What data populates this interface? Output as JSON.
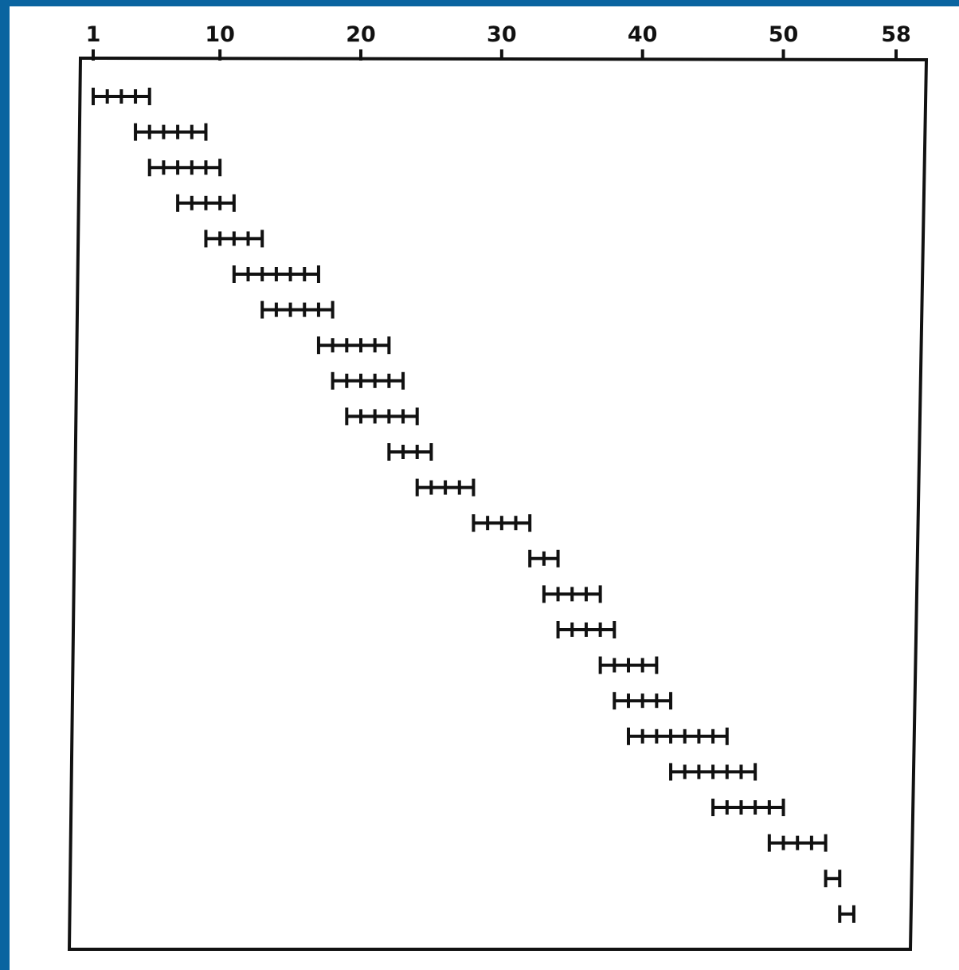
{
  "colors": {
    "page_border": "#0a64a0",
    "ink": "#111111",
    "background": "#ffffff"
  },
  "chart_data": {
    "type": "range",
    "title": "",
    "xlabel": "",
    "ylabel": "",
    "xlim": [
      1,
      58
    ],
    "grid": false,
    "x_tick_labels": [
      "1",
      "10",
      "20",
      "30",
      "40",
      "50",
      "58"
    ],
    "x_ticks": [
      1,
      10,
      20,
      30,
      40,
      50,
      58
    ],
    "ranges": [
      {
        "start": 1,
        "end": 5
      },
      {
        "start": 4,
        "end": 9
      },
      {
        "start": 5,
        "end": 10
      },
      {
        "start": 7,
        "end": 11
      },
      {
        "start": 9,
        "end": 13
      },
      {
        "start": 11,
        "end": 17
      },
      {
        "start": 13,
        "end": 18
      },
      {
        "start": 17,
        "end": 22
      },
      {
        "start": 18,
        "end": 23
      },
      {
        "start": 19,
        "end": 24
      },
      {
        "start": 22,
        "end": 25
      },
      {
        "start": 24,
        "end": 28
      },
      {
        "start": 28,
        "end": 32
      },
      {
        "start": 32,
        "end": 34
      },
      {
        "start": 33,
        "end": 37
      },
      {
        "start": 34,
        "end": 38
      },
      {
        "start": 37,
        "end": 41
      },
      {
        "start": 38,
        "end": 42
      },
      {
        "start": 39,
        "end": 46
      },
      {
        "start": 42,
        "end": 48
      },
      {
        "start": 45,
        "end": 50
      },
      {
        "start": 49,
        "end": 53
      },
      {
        "start": 53,
        "end": 54
      },
      {
        "start": 54,
        "end": 55
      }
    ]
  }
}
